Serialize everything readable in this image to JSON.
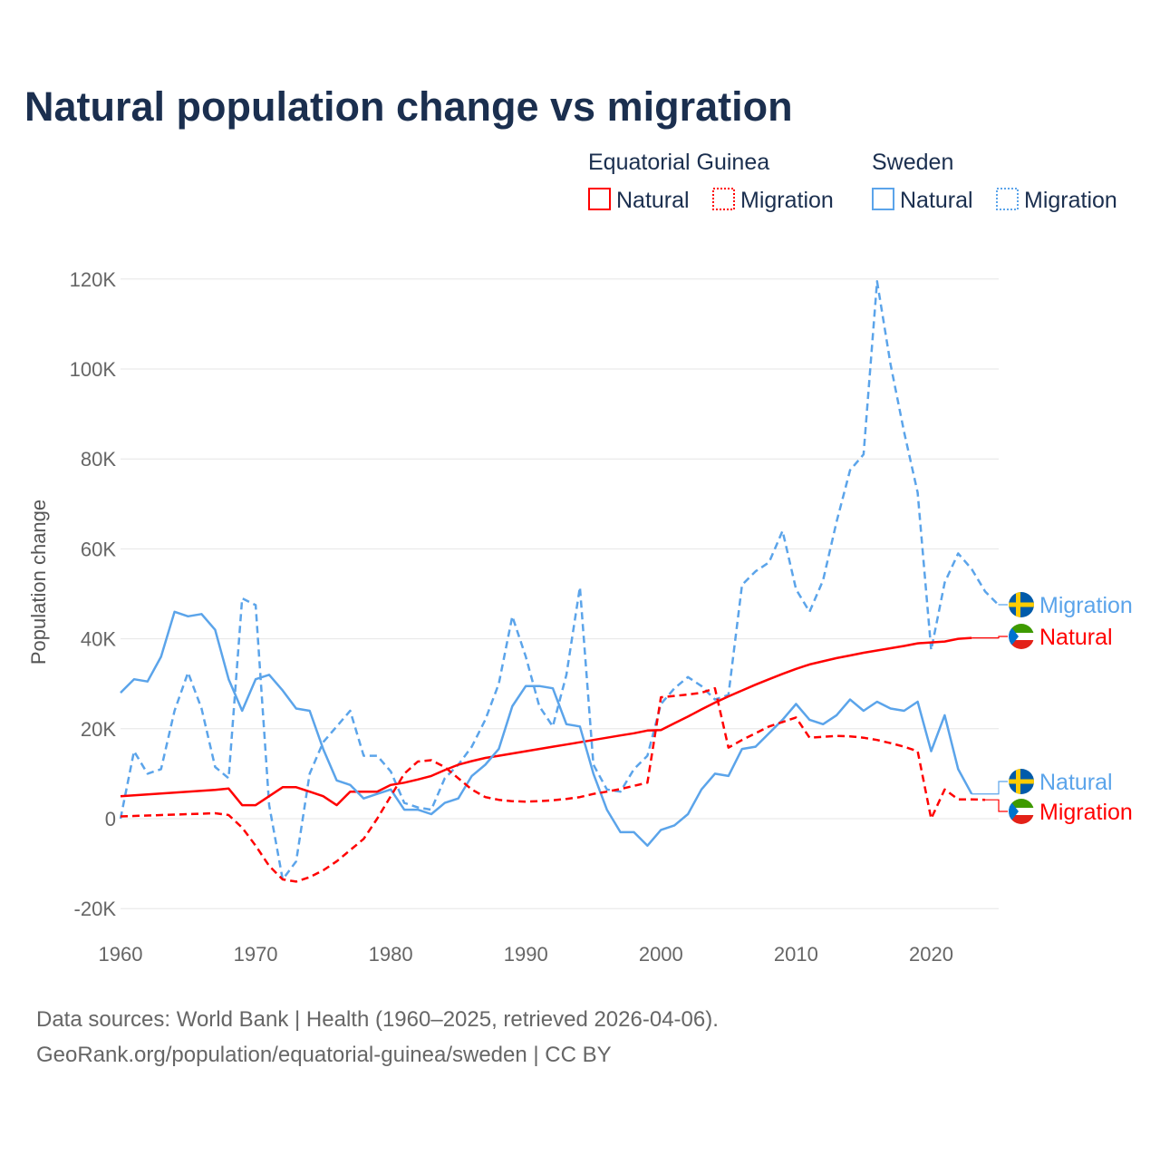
{
  "chart_data": {
    "type": "line",
    "title": "Natural population change vs migration",
    "ylabel": "Population change",
    "xlabel": "",
    "ylim": [
      -20000,
      120000
    ],
    "xlim": [
      1960,
      2025
    ],
    "grid": true,
    "y_ticks": [
      {
        "v": -20000,
        "label": "-20K"
      },
      {
        "v": 0,
        "label": "0"
      },
      {
        "v": 20000,
        "label": "20K"
      },
      {
        "v": 40000,
        "label": "40K"
      },
      {
        "v": 60000,
        "label": "60K"
      },
      {
        "v": 80000,
        "label": "80K"
      },
      {
        "v": 100000,
        "label": "100K"
      },
      {
        "v": 120000,
        "label": "120K"
      }
    ],
    "x_ticks": [
      {
        "v": 1960,
        "label": "1960"
      },
      {
        "v": 1970,
        "label": "1970"
      },
      {
        "v": 1980,
        "label": "1980"
      },
      {
        "v": 1990,
        "label": "1990"
      },
      {
        "v": 2000,
        "label": "2000"
      },
      {
        "v": 2010,
        "label": "2010"
      },
      {
        "v": 2020,
        "label": "2020"
      }
    ],
    "legend": {
      "placement": "top-right",
      "groups": [
        {
          "title": "Equatorial Guinea",
          "items": [
            {
              "label": "Natural",
              "color": "#ff0000",
              "style": "solid"
            },
            {
              "label": "Migration",
              "color": "#ff0000",
              "style": "dashed"
            }
          ]
        },
        {
          "title": "Sweden",
          "items": [
            {
              "label": "Natural",
              "color": "#5ba4ea",
              "style": "solid"
            },
            {
              "label": "Migration",
              "color": "#5ba4ea",
              "style": "dashed"
            }
          ]
        }
      ]
    },
    "x_start": 1960,
    "series": [
      {
        "name": "Sweden Migration",
        "end_label": "Migration",
        "country": "Sweden",
        "color": "#5ba4ea",
        "dashed": true,
        "values": [
          0,
          15000,
          10000,
          11000,
          24000,
          32500,
          24500,
          11500,
          9000,
          49000,
          47500,
          3000,
          -13500,
          -9500,
          10000,
          17000,
          20500,
          24000,
          14000,
          14000,
          10500,
          3500,
          2500,
          2000,
          9000,
          12000,
          16000,
          22000,
          30000,
          45000,
          36000,
          25000,
          20500,
          32000,
          51500,
          12000,
          6500,
          6000,
          11000,
          14000,
          25500,
          29000,
          31500,
          29500,
          26500,
          27500,
          52000,
          55000,
          57000,
          64000,
          51000,
          46000,
          53000,
          66000,
          77500,
          81000,
          119500,
          101000,
          86000,
          72500,
          37500,
          52500,
          59000,
          55500,
          50500,
          47500
        ]
      },
      {
        "name": "Equatorial Guinea Natural",
        "end_label": "Natural",
        "country": "Equatorial Guinea",
        "color": "#ff0000",
        "dashed": false,
        "values": [
          5000,
          5200,
          5400,
          5600,
          5800,
          6000,
          6200,
          6400,
          6700,
          3000,
          3000,
          5000,
          7000,
          7000,
          6000,
          5000,
          3000,
          6000,
          6000,
          6000,
          7500,
          8000,
          8700,
          9500,
          10800,
          12000,
          12800,
          13500,
          14000,
          14500,
          15000,
          15500,
          16000,
          16500,
          17000,
          17500,
          18000,
          18500,
          19000,
          19600,
          19700,
          21200,
          22700,
          24300,
          25800,
          27200,
          28500,
          29800,
          31000,
          32200,
          33300,
          34300,
          35000,
          35700,
          36300,
          36900,
          37400,
          37900,
          38400,
          39000,
          39200,
          39400,
          40000,
          40200
        ]
      },
      {
        "name": "Sweden Natural",
        "end_label": "Natural",
        "country": "Sweden",
        "color": "#5ba4ea",
        "dashed": false,
        "values": [
          28000,
          31000,
          30500,
          36000,
          46000,
          45000,
          45500,
          42000,
          31000,
          24000,
          31000,
          32000,
          28500,
          24500,
          24000,
          15500,
          8500,
          7500,
          4500,
          5500,
          6500,
          2000,
          2000,
          1000,
          3500,
          4500,
          9500,
          12000,
          15500,
          25000,
          29500,
          29500,
          29000,
          21000,
          20500,
          10000,
          2000,
          -3000,
          -3000,
          -6000,
          -2500,
          -1500,
          1000,
          6500,
          10000,
          9500,
          15500,
          16000,
          19000,
          22000,
          25500,
          22000,
          21000,
          23000,
          26500,
          24000,
          26000,
          24500,
          24000,
          26000,
          15000,
          23000,
          11000,
          5500
        ]
      },
      {
        "name": "Equatorial Guinea Migration",
        "end_label": "Migration",
        "country": "Equatorial Guinea",
        "color": "#ff0000",
        "dashed": true,
        "values": [
          500,
          600,
          700,
          800,
          900,
          1000,
          1100,
          1200,
          800,
          -2000,
          -6000,
          -10500,
          -13500,
          -14000,
          -13000,
          -11500,
          -9500,
          -7000,
          -4500,
          0,
          5000,
          10000,
          12700,
          13000,
          11500,
          9000,
          6500,
          4800,
          4200,
          3900,
          3800,
          3900,
          4100,
          4400,
          4800,
          5500,
          6000,
          6600,
          7300,
          8000,
          27000,
          27300,
          27600,
          28000,
          29000,
          15800,
          17500,
          19000,
          20500,
          21500,
          22500,
          18000,
          18200,
          18400,
          18300,
          18000,
          17500,
          16800,
          16000,
          15000,
          0,
          6500,
          4300,
          4300,
          4200
        ]
      }
    ]
  },
  "footer": {
    "line1": "Data sources: World Bank | Health (1960–2025, retrieved 2026-04-06).",
    "line2": "GeoRank.org/population/equatorial-guinea/sweden | CC BY"
  }
}
